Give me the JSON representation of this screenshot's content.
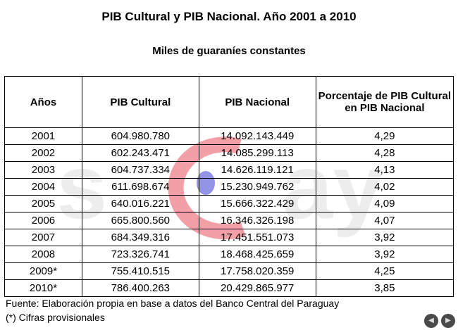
{
  "title": "PIB Cultural y PIB Nacional. Año 2001 a 2010",
  "subtitle": "Miles de guaraníes constantes",
  "table": {
    "headers": [
      "Años",
      "PIB Cultural",
      "PIB Nacional",
      "Porcentaje de PIB Cultural en PIB Nacional"
    ],
    "rows": [
      [
        "2001",
        "604.980.780",
        "14.092.143.449",
        "4,29"
      ],
      [
        "2002",
        "602.243.471",
        "14.085.299.113",
        "4,28"
      ],
      [
        "2003",
        "604.737.334",
        "14.626.119.121",
        "4,13"
      ],
      [
        "2004",
        "611.698.674",
        "15.230.949.762",
        "4,02"
      ],
      [
        "2005",
        "640.016.221",
        "15.666.322.429",
        "4,09"
      ],
      [
        "2006",
        "665.800.560",
        "16.346.326.198",
        "4,07"
      ],
      [
        "2007",
        "684.349.316",
        "17.451.551.073",
        "3,92"
      ],
      [
        "2008",
        "723.326.741",
        "18.468.425.659",
        "3,92"
      ],
      [
        "2009*",
        "755.410.515",
        "17.758.020.359",
        "4,25"
      ],
      [
        "2010*",
        "786.400.263",
        "20.429.865.977",
        "3,85"
      ]
    ]
  },
  "footnotes": {
    "source": "Fuente: Elaboración propia en base a datos del Banco Central del Paraguay",
    "provisional": "(*) Cifras provisionales"
  },
  "nav": {
    "prev_icon": "back-arrow-icon",
    "next_icon": "forward-arrow-icon"
  },
  "colors": {
    "watermark_red": "#e8505b",
    "watermark_blue": "#5a5ad8",
    "watermark_gray": "#e6e6e6"
  }
}
